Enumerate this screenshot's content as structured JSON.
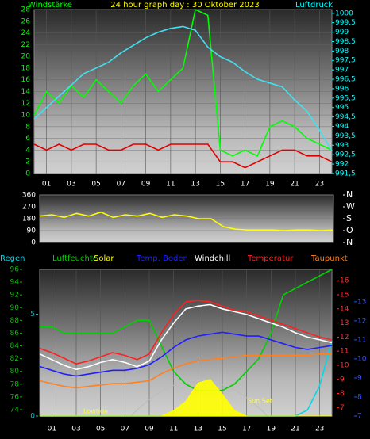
{
  "chart_data": [
    {
      "type": "line",
      "title": "24 hour graph day : 30 Oktober 2023",
      "x": [
        0,
        1,
        2,
        3,
        4,
        5,
        6,
        7,
        8,
        9,
        10,
        11,
        12,
        13,
        14,
        15,
        16,
        17,
        18,
        19,
        20,
        21,
        22,
        23,
        24
      ],
      "xlim": [
        0,
        24
      ],
      "xticks": [
        {
          "value": 1,
          "label": "01"
        },
        {
          "value": 3,
          "label": "03"
        },
        {
          "value": 5,
          "label": "05"
        },
        {
          "value": 7,
          "label": "07"
        },
        {
          "value": 9,
          "label": "09"
        },
        {
          "value": 11,
          "label": "11"
        },
        {
          "value": 13,
          "label": "13"
        },
        {
          "value": 15,
          "label": "15"
        },
        {
          "value": 17,
          "label": "17"
        },
        {
          "value": 19,
          "label": "19"
        },
        {
          "value": 21,
          "label": "21"
        },
        {
          "value": 23,
          "label": "23"
        }
      ],
      "axes": {
        "y": {
          "label": "Windstärke",
          "color": "#00ff00",
          "lim": [
            0,
            28
          ],
          "ticks": [
            0,
            2,
            4,
            6,
            8,
            10,
            12,
            14,
            16,
            18,
            20,
            22,
            24,
            26,
            28
          ]
        },
        "y2": {
          "label": "Luftdruck",
          "color": "#00ffff",
          "lim": [
            991.5,
            1000.2
          ],
          "ticks": [
            {
              "value": 991.5,
              "label": "991,5"
            },
            992,
            {
              "value": 992.5,
              "label": "992,5"
            },
            993,
            {
              "value": 993.5,
              "label": "993,5"
            },
            994,
            {
              "value": 994.5,
              "label": "994,5"
            },
            995,
            {
              "value": 995.5,
              "label": "995,5"
            },
            996,
            {
              "value": 996.5,
              "label": "996,5"
            },
            997,
            {
              "value": 997.5,
              "label": "997,5"
            },
            998,
            {
              "value": 998.5,
              "label": "998,5"
            },
            999,
            {
              "value": 999.5,
              "label": "999,5"
            },
            1000
          ]
        }
      },
      "grid": true,
      "series": [
        {
          "color": "#00ff00",
          "axis": "y",
          "values": [
            10,
            14,
            12,
            15,
            13,
            16,
            14,
            12,
            15,
            17,
            14,
            16,
            18,
            28,
            27,
            4,
            3,
            4,
            3,
            8,
            9,
            8,
            6,
            5,
            4
          ]
        },
        {
          "color": "#e00000",
          "axis": "y",
          "values": [
            5,
            4,
            5,
            4,
            5,
            5,
            4,
            4,
            5,
            5,
            4,
            5,
            5,
            5,
            5,
            2,
            2,
            1,
            2,
            3,
            4,
            4,
            3,
            3,
            2
          ]
        },
        {
          "color": "#40e0f0",
          "axis": "y2",
          "values": [
            994.4,
            995,
            995.6,
            996.2,
            996.8,
            997.1,
            997.4,
            997.9,
            998.3,
            998.7,
            999,
            999.2,
            999.3,
            999.1,
            998.2,
            997.7,
            997.4,
            996.9,
            996.5,
            996.3,
            996.1,
            995.4,
            994.8,
            993.8,
            992.7
          ]
        }
      ]
    },
    {
      "type": "line",
      "x": [
        0,
        1,
        2,
        3,
        4,
        5,
        6,
        7,
        8,
        9,
        10,
        11,
        12,
        13,
        14,
        15,
        16,
        17,
        18,
        19,
        20,
        21,
        22,
        23,
        24
      ],
      "xlim": [
        0,
        24
      ],
      "axes": {
        "y": {
          "color": "#ffffff",
          "lim": [
            0,
            360
          ],
          "ticks": [
            0,
            90,
            180,
            270,
            360
          ]
        },
        "y2": {
          "color": "#ffffff",
          "lim": [
            0,
            360
          ],
          "ticks": [
            {
              "value": 0,
              "label": "N"
            },
            {
              "value": 90,
              "label": "O"
            },
            {
              "value": 180,
              "label": "S"
            },
            {
              "value": 270,
              "label": "W"
            },
            {
              "value": 360,
              "label": "N"
            }
          ]
        }
      },
      "grid": true,
      "series": [
        {
          "color": "#ffff00",
          "axis": "y",
          "values": [
            200,
            210,
            190,
            220,
            200,
            230,
            190,
            210,
            200,
            220,
            190,
            210,
            200,
            180,
            180,
            120,
            100,
            95,
            95,
            95,
            90,
            95,
            95,
            90,
            95
          ]
        }
      ]
    },
    {
      "type": "line",
      "x": [
        0,
        1,
        2,
        3,
        4,
        5,
        6,
        7,
        8,
        9,
        10,
        11,
        12,
        13,
        14,
        15,
        16,
        17,
        18,
        19,
        20,
        21,
        22,
        23,
        24
      ],
      "xlim": [
        0,
        24
      ],
      "xticks": [
        {
          "value": 1,
          "label": "01"
        },
        {
          "value": 3,
          "label": "03"
        },
        {
          "value": 5,
          "label": "05"
        },
        {
          "value": 7,
          "label": "07"
        },
        {
          "value": 9,
          "label": "09"
        },
        {
          "value": 11,
          "label": "11"
        },
        {
          "value": 13,
          "label": "13"
        },
        {
          "value": 15,
          "label": "15"
        },
        {
          "value": 17,
          "label": "17"
        },
        {
          "value": 19,
          "label": "19"
        },
        {
          "value": 21,
          "label": "21"
        },
        {
          "value": 23,
          "label": "23"
        }
      ],
      "axes": {
        "rain": {
          "color": "#00c8c8",
          "lim": [
            0,
            7.2
          ],
          "ticks": [
            0,
            5
          ]
        },
        "y": {
          "color": "#00c800",
          "lim": [
            73,
            96
          ],
          "ticks": [
            74,
            76,
            78,
            80,
            82,
            84,
            86,
            88,
            90,
            92,
            94,
            96
          ]
        },
        "y2": {
          "color": "#ff3030",
          "lim": [
            6.4,
            16.8
          ],
          "ticks": [
            7,
            8,
            9,
            10,
            11,
            12,
            13,
            14,
            15,
            16
          ]
        },
        "y3": {
          "color": "#3050ff",
          "lim": [
            7,
            14.7
          ],
          "ticks": [
            7,
            8,
            9,
            10,
            11,
            12,
            13
          ]
        },
        "solar": {
          "lim": [
            0,
            400
          ]
        }
      },
      "grid": true,
      "annotations": [
        "Lowtide",
        "Sun Set"
      ],
      "series": [
        {
          "name": "Regen",
          "color": "#00d8e8",
          "axis": "rain",
          "values": [
            0,
            0,
            0,
            0,
            0,
            0,
            0,
            0,
            0,
            0,
            0,
            0,
            0,
            0,
            0,
            0,
            0,
            0,
            0,
            0,
            0,
            0,
            0.3,
            1.5,
            3.7
          ]
        },
        {
          "name": "Luftfeuchte",
          "color": "#00d000",
          "axis": "y",
          "values": [
            87,
            87,
            86,
            86,
            86,
            86,
            86,
            87,
            88,
            88,
            84,
            80,
            78,
            77,
            77,
            77,
            78,
            80,
            82,
            86,
            92,
            93,
            94,
            95,
            96
          ]
        },
        {
          "name": "Solar",
          "color": "#ffff00",
          "axis": "solar",
          "style": "area",
          "values": [
            0,
            0,
            0,
            0,
            0,
            0,
            0,
            0,
            0,
            0,
            0,
            15,
            40,
            90,
            100,
            60,
            15,
            0,
            0,
            0,
            0,
            0,
            0,
            0,
            0
          ]
        },
        {
          "name": "Temp. Boden",
          "color": "#2020ff",
          "axis": "y3",
          "values": [
            9.6,
            9.4,
            9.2,
            9.1,
            9.2,
            9.3,
            9.4,
            9.4,
            9.5,
            9.7,
            10.1,
            10.6,
            11,
            11.2,
            11.3,
            11.4,
            11.3,
            11.2,
            11.2,
            11,
            10.8,
            10.6,
            10.5,
            10.6,
            10.7
          ]
        },
        {
          "name": "Windchill",
          "color": "#ffffff",
          "axis": "y2",
          "values": [
            10.8,
            10.4,
            10,
            9.7,
            9.9,
            10.2,
            10.4,
            10.2,
            9.9,
            10.3,
            11.8,
            13,
            14,
            14.2,
            14.3,
            14,
            13.8,
            13.6,
            13.3,
            13,
            12.7,
            12.3,
            12,
            11.8,
            11.6
          ]
        },
        {
          "name": "Temperatur",
          "color": "#ff2020",
          "axis": "y2",
          "values": [
            11.2,
            10.9,
            10.5,
            10.1,
            10.3,
            10.6,
            10.9,
            10.7,
            10.4,
            10.8,
            12.3,
            13.6,
            14.5,
            14.6,
            14.5,
            14.2,
            13.9,
            13.8,
            13.5,
            13.2,
            12.9,
            12.6,
            12.3,
            12,
            11.8
          ]
        },
        {
          "name": "Taupunkt",
          "color": "#ff8020",
          "axis": "y2",
          "values": [
            8.9,
            8.7,
            8.5,
            8.4,
            8.5,
            8.6,
            8.7,
            8.7,
            8.8,
            8.9,
            9.4,
            9.8,
            10.1,
            10.3,
            10.4,
            10.5,
            10.6,
            10.7,
            10.7,
            10.7,
            10.7,
            10.7,
            10.7,
            10.8,
            10.8
          ]
        }
      ]
    }
  ]
}
